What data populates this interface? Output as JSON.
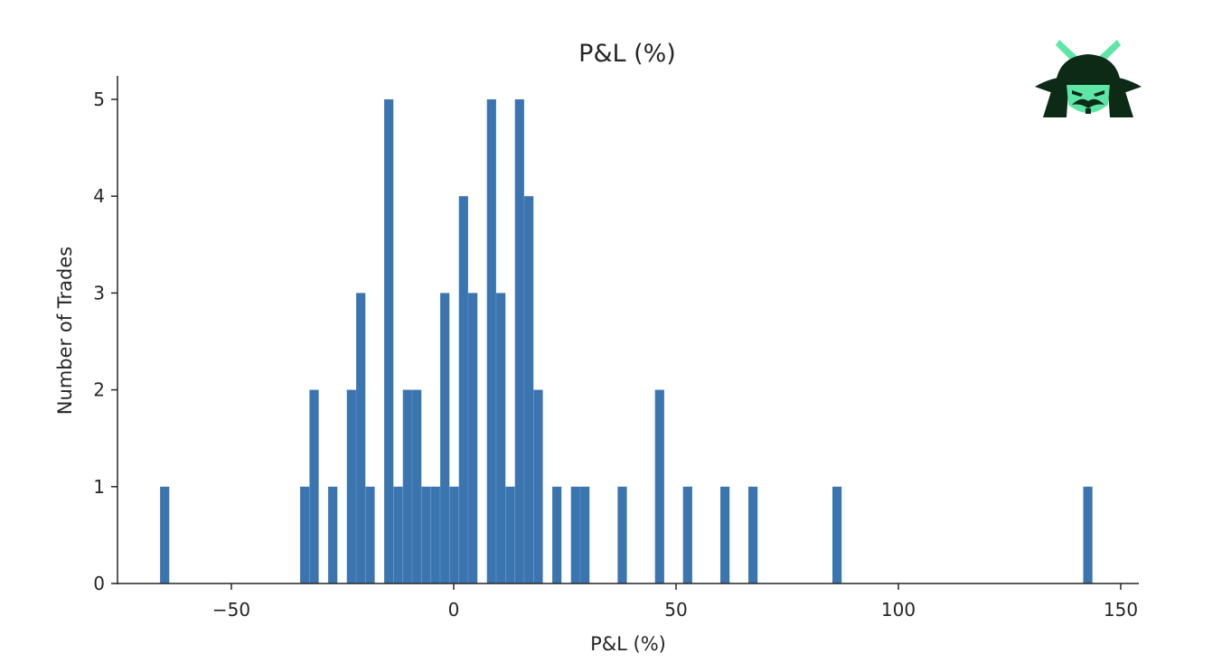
{
  "chart_data": {
    "type": "bar",
    "title": "P&L (%)",
    "xlabel": "P&L (%)",
    "ylabel": "Number of Trades",
    "xlim": [
      -75,
      153
    ],
    "ylim": [
      0,
      5.3
    ],
    "x_ticks": [
      -50,
      0,
      50,
      100,
      150
    ],
    "x_tick_labels": [
      "−50",
      "0",
      "50",
      "100",
      "150"
    ],
    "y_ticks": [
      0,
      1,
      2,
      3,
      4,
      5
    ],
    "y_tick_labels": [
      "0",
      "1",
      "2",
      "3",
      "4",
      "5"
    ],
    "grid": false,
    "bin_width": 2.07,
    "bins": [
      {
        "x": -65.0,
        "count": 1
      },
      {
        "x": -33.5,
        "count": 1
      },
      {
        "x": -31.4,
        "count": 2
      },
      {
        "x": -27.2,
        "count": 1
      },
      {
        "x": -23.0,
        "count": 2
      },
      {
        "x": -20.9,
        "count": 3
      },
      {
        "x": -18.8,
        "count": 1
      },
      {
        "x": -14.6,
        "count": 5
      },
      {
        "x": -12.5,
        "count": 1
      },
      {
        "x": -10.4,
        "count": 2
      },
      {
        "x": -8.3,
        "count": 2
      },
      {
        "x": -6.2,
        "count": 1
      },
      {
        "x": -4.1,
        "count": 1
      },
      {
        "x": -2.0,
        "count": 3
      },
      {
        "x": 0.1,
        "count": 1
      },
      {
        "x": 2.2,
        "count": 4
      },
      {
        "x": 4.3,
        "count": 3
      },
      {
        "x": 8.5,
        "count": 5
      },
      {
        "x": 10.6,
        "count": 3
      },
      {
        "x": 12.7,
        "count": 1
      },
      {
        "x": 14.8,
        "count": 5
      },
      {
        "x": 16.9,
        "count": 4
      },
      {
        "x": 19.0,
        "count": 2
      },
      {
        "x": 23.2,
        "count": 1
      },
      {
        "x": 27.4,
        "count": 1
      },
      {
        "x": 29.5,
        "count": 1
      },
      {
        "x": 37.9,
        "count": 1
      },
      {
        "x": 46.3,
        "count": 2
      },
      {
        "x": 52.6,
        "count": 1
      },
      {
        "x": 61.0,
        "count": 1
      },
      {
        "x": 67.3,
        "count": 1
      },
      {
        "x": 86.2,
        "count": 1
      },
      {
        "x": 142.6,
        "count": 1
      }
    ],
    "bar_color": "#3b75b0"
  },
  "logo": {
    "icon": "samurai-helmet-icon",
    "colors": {
      "dark": "#0c2a15",
      "accent": "#5ee6a6"
    }
  }
}
